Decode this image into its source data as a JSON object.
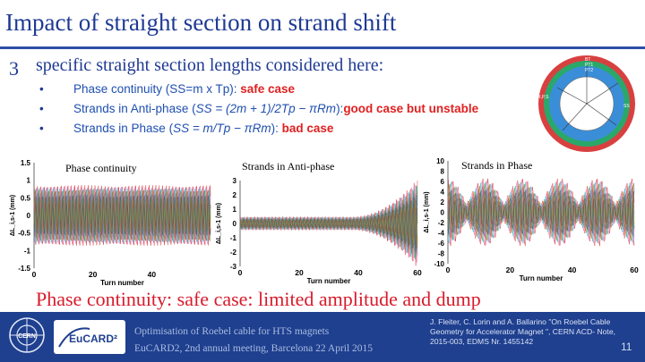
{
  "slide": {
    "title": "Impact of  straight section on strand shift",
    "main_bullet": "3",
    "main_text": "specific straight section lengths considered here:",
    "bullets": [
      {
        "text": "Phase continuity (SS=m x Tp): ",
        "emph": "safe case"
      },
      {
        "text": "Strands in Anti-phase (",
        "formula": "SS = (2m + 1)/2Tp − πRm",
        "after": "):",
        "emph": "good case but unstable"
      },
      {
        "text": "Strands in Phase (",
        "formula": "SS = m/Tp − πRm",
        "after": "): ",
        "emph": "bad case"
      }
    ],
    "conclusion": "Phase continuity: safe case: limited amplitude and dump"
  },
  "footer": {
    "line1": "Optimisation of Roebel cable for HTS magnets",
    "line2": "EuCARD2, 2nd annual meeting, Barcelona  22 April  2015",
    "reference": "J. Fleiter, C. Lorin and A. Ballarino \"On Roebel Cable Geometry for Accelerator Magnet \", CERN ACD- Note, 2015-003, EDMS Nr. 1455142",
    "page": "11",
    "cern_logo": "CERN",
    "eucard_logo": "EuCARD²"
  },
  "colors": {
    "title_blue": "#1f3a93",
    "footer_blue": "#1f3f8f",
    "red": "#e02020"
  },
  "diagram_labels": {
    "top": [
      "BT",
      "PT1",
      "PT2"
    ],
    "left": "R,P,S",
    "right": "SS"
  },
  "chart_data": [
    {
      "type": "line",
      "title": "Phase continuity",
      "xlabel": "Turn number",
      "ylabel": "ΔL_i,s-1 (mm)",
      "xlim": [
        0,
        60
      ],
      "ylim": [
        -1.5,
        1.5
      ],
      "xticks": [
        "0",
        "20",
        "40"
      ],
      "yticks": [
        "1.5",
        "1",
        "0.5",
        "0",
        "-0.5",
        "-1",
        "-1.5"
      ],
      "amplitude": 0.9,
      "growth": "constant"
    },
    {
      "type": "line",
      "title": "Strands in Anti-phase",
      "xlabel": "Turn number",
      "ylabel": "ΔL_i,s-1 (mm)",
      "xlim": [
        0,
        60
      ],
      "ylim": [
        -3,
        3
      ],
      "xticks": [
        "0",
        "20",
        "40",
        "60"
      ],
      "yticks": [
        "3",
        "2",
        "1",
        "0",
        "-1",
        "-2",
        "-3"
      ],
      "amplitude": 0.5,
      "growth": "unstable"
    },
    {
      "type": "line",
      "title": "Strands in Phase",
      "xlabel": "Turn number",
      "ylabel": "ΔL_i,s-1 (mm)",
      "xlim": [
        0,
        60
      ],
      "ylim": [
        -10,
        10
      ],
      "xticks": [
        "0",
        "20",
        "40",
        "60"
      ],
      "yticks": [
        "10",
        "8",
        "6",
        "4",
        "2",
        "0",
        "-2",
        "-4",
        "-6",
        "-8",
        "-10"
      ],
      "amplitude": 7,
      "growth": "modulated"
    }
  ]
}
